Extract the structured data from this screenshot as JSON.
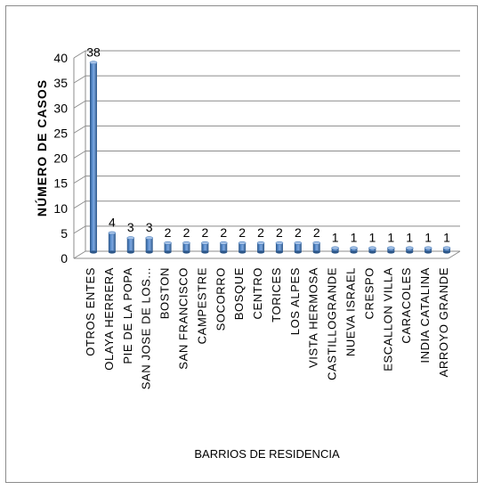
{
  "chart_data": {
    "type": "bar",
    "style": "3d-cylinder",
    "categories": [
      "OTROS ENTES",
      "OLAYA HERRERA",
      "PIE DE LA POPA",
      "SAN JOSE DE LOS...",
      "BOSTON",
      "SAN FRANCISCO",
      "CAMPESTRE",
      "SOCORRO",
      "BOSQUE",
      "CENTRO",
      "TORICES",
      "LOS ALPES",
      "VISTA HERMOSA",
      "CASTILLOGRANDE",
      "NUEVA ISRAEL",
      "CRESPO",
      "ESCALLON VILLA",
      "CARACOLES",
      "INDIA CATALINA",
      "ARROYO GRANDE"
    ],
    "values": [
      38,
      4,
      3,
      3,
      2,
      2,
      2,
      2,
      2,
      2,
      2,
      2,
      2,
      1,
      1,
      1,
      1,
      1,
      1,
      1
    ],
    "xlabel": "BARRIOS DE RESIDENCIA",
    "ylabel": "NÚMERO DE CASOS",
    "ylim": [
      0,
      40
    ],
    "yticks": [
      "0",
      "5",
      "10",
      "15",
      "20",
      "25",
      "30",
      "35",
      "40"
    ],
    "grid": true,
    "legend": "none",
    "colors": {
      "bar": "#4a7ebb",
      "bar_dark": "#2c5688",
      "bar_light": "#a9c4e8",
      "grid": "#8c8c8c"
    }
  }
}
